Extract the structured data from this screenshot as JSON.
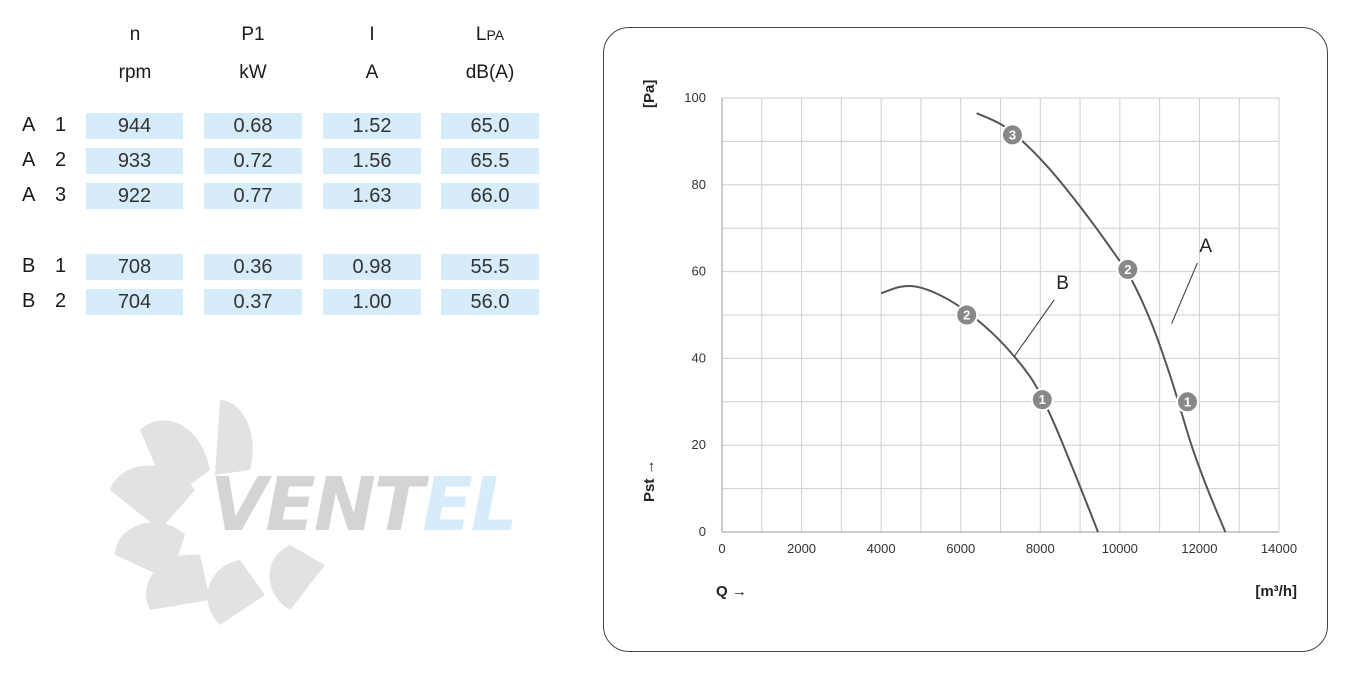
{
  "table": {
    "headers": [
      {
        "symbol": "n",
        "unit": "rpm"
      },
      {
        "symbol": "P1",
        "unit": "kW"
      },
      {
        "symbol": "I",
        "unit": "A"
      },
      {
        "symbol": "L",
        "sub": "PA",
        "unit": "dB(A)"
      }
    ],
    "rows": [
      {
        "curve": "A",
        "step": "1",
        "values": [
          "944",
          "0.68",
          "1.52",
          "65.0"
        ]
      },
      {
        "curve": "A",
        "step": "2",
        "values": [
          "933",
          "0.72",
          "1.56",
          "65.5"
        ]
      },
      {
        "curve": "A",
        "step": "3",
        "values": [
          "922",
          "0.77",
          "1.63",
          "66.0"
        ]
      },
      {
        "curve": "B",
        "step": "1",
        "values": [
          "708",
          "0.36",
          "0.98",
          "55.5"
        ]
      },
      {
        "curve": "B",
        "step": "2",
        "values": [
          "704",
          "0.37",
          "1.00",
          "56.0"
        ]
      }
    ]
  },
  "watermark": {
    "text": "VENTEL"
  },
  "chart_data": {
    "type": "line",
    "xlabel": "Q →",
    "xunit": "[m³/h]",
    "ylabel": "Pst →",
    "yunit": "[Pa]",
    "xlim": [
      0,
      14000
    ],
    "ylim": [
      0,
      100
    ],
    "xticks": [
      "0",
      "2000",
      "4000",
      "6000",
      "8000",
      "10000",
      "12000",
      "14000"
    ],
    "yticks": [
      "0",
      "20",
      "40",
      "60",
      "80",
      "100"
    ],
    "grid": true,
    "series": [
      {
        "name": "A",
        "x": [
          6400,
          7000,
          7500,
          8200,
          9000,
          9800,
          10300,
          10800,
          11300,
          11800,
          12200,
          12650
        ],
        "y": [
          96.5,
          94,
          90.5,
          84,
          75,
          65,
          58,
          48,
          35,
          20,
          10,
          0
        ],
        "markers": [
          {
            "label": "1",
            "x": 11700,
            "y": 30
          },
          {
            "label": "2",
            "x": 10200,
            "y": 60.5
          },
          {
            "label": "3",
            "x": 7300,
            "y": 91.5
          }
        ]
      },
      {
        "name": "B",
        "x": [
          4000,
          4500,
          5000,
          5700,
          6400,
          7100,
          7800,
          8300,
          8800,
          9150,
          9450
        ],
        "y": [
          55,
          56.5,
          56.3,
          53.5,
          49,
          43,
          35,
          26,
          15,
          7,
          0
        ],
        "markers": [
          {
            "label": "1",
            "x": 8050,
            "y": 30.5
          },
          {
            "label": "2",
            "x": 6150,
            "y": 50
          }
        ]
      }
    ]
  }
}
